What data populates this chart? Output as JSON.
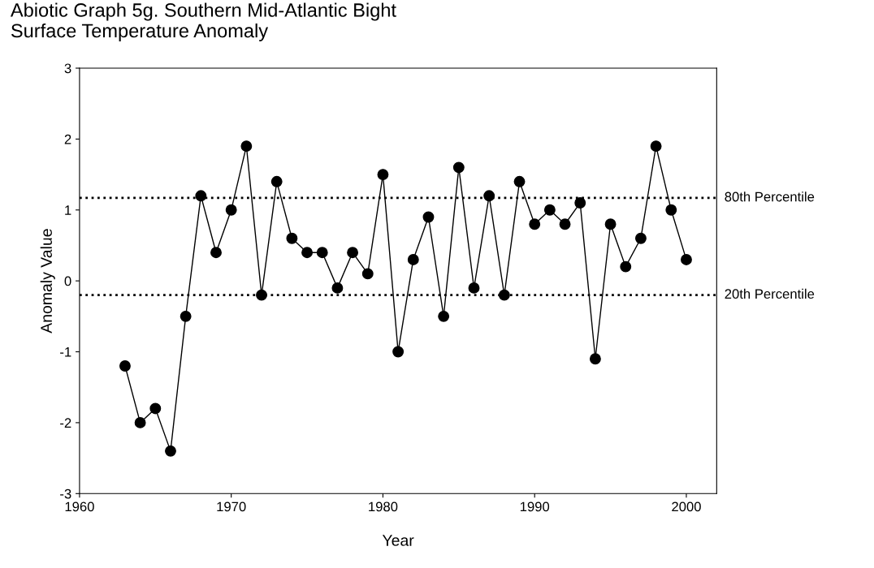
{
  "chart_data": {
    "type": "line",
    "title": "Abiotic Graph 5g. Southern Mid-Atlantic Bight\nSurface Temperature Anomaly",
    "xlabel": "Year",
    "ylabel": "Anomaly Value",
    "x": [
      1963,
      1964,
      1965,
      1966,
      1967,
      1968,
      1969,
      1970,
      1971,
      1972,
      1973,
      1974,
      1975,
      1976,
      1977,
      1978,
      1979,
      1980,
      1981,
      1982,
      1983,
      1984,
      1985,
      1986,
      1987,
      1988,
      1989,
      1990,
      1991,
      1992,
      1993,
      1994,
      1995,
      1996,
      1997,
      1998,
      1999,
      2000
    ],
    "series": [
      {
        "color": "#000000",
        "values": [
          -1.2,
          -2.0,
          -1.8,
          -2.4,
          -0.5,
          1.2,
          0.4,
          1.0,
          1.9,
          -0.2,
          1.4,
          0.6,
          0.4,
          0.4,
          -0.1,
          0.4,
          0.1,
          1.5,
          -1.0,
          0.3,
          0.9,
          -0.5,
          1.6,
          -0.1,
          1.2,
          -0.2,
          1.4,
          0.8,
          1.0,
          0.8,
          1.1,
          -1.1,
          0.8,
          0.2,
          0.6,
          1.9,
          1.0,
          0.3
        ]
      }
    ],
    "xlim": [
      1960,
      2002
    ],
    "xticks": [
      1960,
      1970,
      1980,
      1990,
      2000
    ],
    "ylim": [
      -3,
      3
    ],
    "yticks": [
      -3,
      -2,
      -1,
      0,
      1,
      2,
      3
    ],
    "ref_lines": [
      {
        "axis": "y",
        "value": 1.17,
        "label": "80th Percentile",
        "color": "#000000",
        "line_style": "dotted"
      },
      {
        "axis": "y",
        "value": -0.2,
        "label": "20th Percentile",
        "color": "#000000",
        "line_style": "dotted"
      }
    ],
    "marker": "circle",
    "line_style": "solid",
    "grid": false,
    "legend": false
  }
}
